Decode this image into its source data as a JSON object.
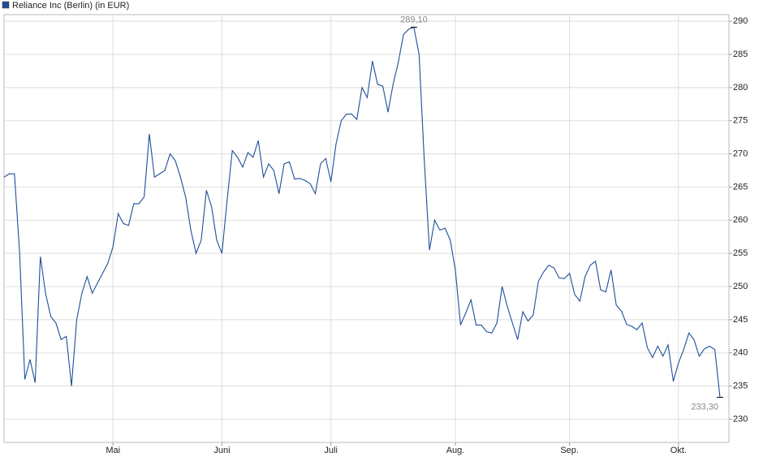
{
  "chart_data": {
    "type": "line",
    "series": [
      {
        "name": "Reliance Inc (Berlin) (in EUR)",
        "color": "#1f4e99",
        "values": [
          266.5,
          267,
          267,
          255,
          236,
          239,
          235.5,
          254.5,
          249,
          245.5,
          244.5,
          242,
          242.5,
          235,
          245,
          249,
          251.5,
          249,
          250.5,
          252,
          253.5,
          256,
          261,
          259.5,
          259.2,
          262.5,
          262.5,
          263.5,
          273,
          266.5,
          267,
          267.5,
          270,
          269,
          266.5,
          263.5,
          258.5,
          255,
          257,
          264.5,
          262,
          257,
          255,
          263,
          270.5,
          269.5,
          268,
          270.2,
          269.5,
          272,
          266.5,
          268.5,
          267.5,
          264,
          268.5,
          268.8,
          266.2,
          266.3,
          266,
          265.5,
          264,
          268.5,
          269.3,
          265.8,
          271.5,
          275,
          276,
          276,
          275.2,
          280,
          278.5,
          284,
          280.5,
          280.2,
          276.3,
          280.5,
          283.8,
          288,
          288.8,
          289.1,
          285,
          269,
          255.5,
          260,
          258.5,
          258.8,
          257,
          252.5,
          244.2,
          246,
          248,
          244.2,
          244.2,
          243.2,
          243,
          244.5,
          250,
          247,
          244.5,
          242,
          246.2,
          244.8,
          245.7,
          250.8,
          252.2,
          253.2,
          252.8,
          251.3,
          251.2,
          252,
          248.8,
          247.8,
          251.5,
          253.2,
          253.8,
          249.5,
          249.2,
          252.5,
          247.2,
          246.3,
          244.3,
          244,
          243.5,
          244.5,
          240.8,
          239.3,
          241,
          239.5,
          241.2,
          235.7,
          238.5,
          240.5,
          243,
          242,
          239.5,
          240.6,
          241,
          240.5,
          233.3
        ],
        "value_labels": [
          null,
          null,
          null,
          null,
          null,
          null,
          null,
          null,
          null,
          null,
          null,
          null,
          null,
          null,
          null,
          null,
          null,
          null,
          null,
          null,
          null,
          null,
          null,
          null,
          null,
          null,
          null,
          null,
          null,
          null,
          null,
          null,
          null,
          null,
          null,
          null,
          null,
          null,
          null,
          null,
          null,
          null,
          null,
          null,
          null,
          null,
          null,
          null,
          null,
          null,
          null,
          null,
          null,
          null,
          null,
          null,
          null,
          null,
          null,
          null,
          null,
          null,
          null,
          null,
          null,
          null,
          null,
          null,
          null,
          null,
          null,
          null,
          null,
          null,
          null,
          null,
          null,
          null,
          null,
          "289,10",
          null,
          null,
          null,
          null,
          null,
          null,
          null,
          null,
          null,
          null,
          null,
          null,
          null,
          null,
          null,
          null,
          null,
          null,
          null,
          null,
          null,
          null,
          null,
          null,
          null,
          null,
          null,
          null,
          null,
          null,
          null,
          null,
          null,
          null,
          null,
          null,
          null,
          null,
          null,
          null,
          null,
          null,
          null,
          null,
          null,
          null,
          null,
          null,
          null,
          null,
          null,
          null,
          null,
          null,
          null,
          null,
          null,
          null,
          "233,30"
        ]
      }
    ],
    "categories": [
      null,
      null,
      null,
      null,
      null,
      null,
      null,
      null,
      null,
      null,
      null,
      null,
      null,
      null,
      null,
      null,
      null,
      null,
      null,
      null,
      null,
      "Mai",
      null,
      null,
      null,
      null,
      null,
      null,
      null,
      null,
      null,
      null,
      null,
      null,
      null,
      null,
      null,
      null,
      null,
      null,
      null,
      null,
      "Juni",
      null,
      null,
      null,
      null,
      null,
      null,
      null,
      null,
      null,
      null,
      null,
      null,
      null,
      null,
      null,
      null,
      null,
      null,
      null,
      null,
      "Juli",
      null,
      null,
      null,
      null,
      null,
      null,
      null,
      null,
      null,
      null,
      null,
      null,
      null,
      null,
      null,
      null,
      null,
      null,
      null,
      null,
      null,
      null,
      null,
      "Aug.",
      null,
      null,
      null,
      null,
      null,
      null,
      null,
      null,
      null,
      null,
      null,
      null,
      null,
      null,
      null,
      null,
      null,
      null,
      null,
      null,
      null,
      "Sep.",
      null,
      null,
      null,
      null,
      null,
      null,
      null,
      null,
      null,
      null,
      null,
      null,
      null,
      null,
      null,
      null,
      null,
      null,
      null,
      null,
      "Okt.",
      null,
      null,
      null,
      null,
      null,
      null,
      null,
      null
    ],
    "ylim": [
      226.5,
      291
    ],
    "yticks": [
      230,
      235,
      240,
      245,
      250,
      255,
      260,
      265,
      270,
      275,
      280,
      285,
      290
    ],
    "grid": true
  }
}
